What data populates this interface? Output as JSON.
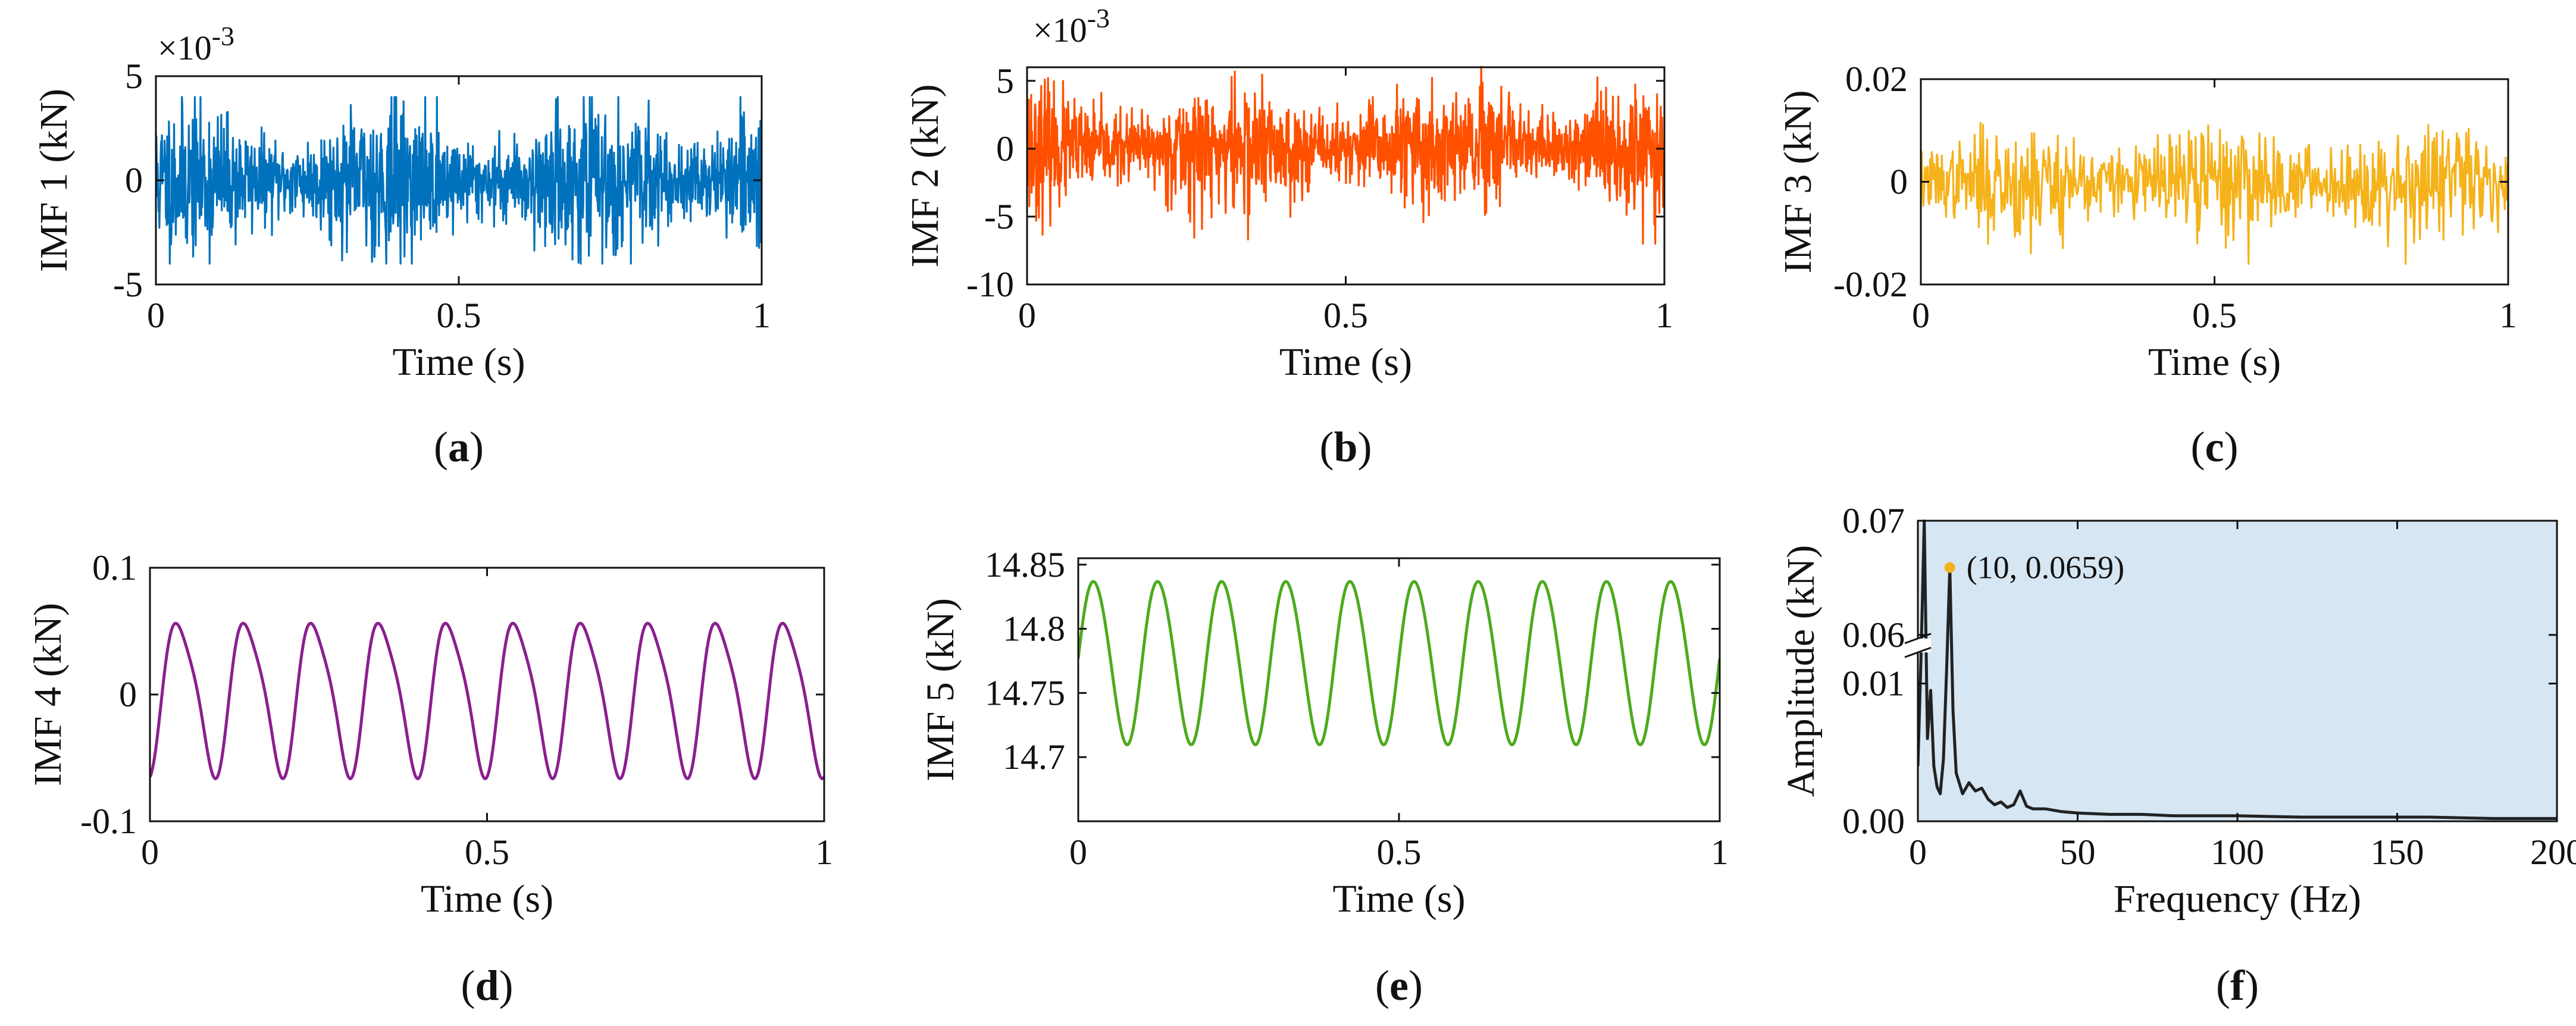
{
  "chart_data": [
    {
      "id": "a",
      "type": "line",
      "ylabel": "IMF 1 (kN)",
      "xlabel": "Time (s)",
      "caption_letter": "a",
      "exponent_label": "×10",
      "exponent_power": "-3",
      "xlim": [
        0,
        1
      ],
      "ylim": [
        -5,
        5
      ],
      "xticks": [
        0,
        0.5,
        1
      ],
      "xtick_labels": [
        "0",
        "0.5",
        "1"
      ],
      "yticks": [
        -5,
        0,
        5
      ],
      "ytick_labels": [
        "-5",
        "0",
        "5"
      ],
      "color": "#0072BD",
      "signal": {
        "kind": "noise",
        "n": 1400,
        "amplitude": 1.6,
        "clip": 4,
        "seed": 11,
        "unit_scale": "x10^-3"
      }
    },
    {
      "id": "b",
      "type": "line",
      "ylabel": "IMF 2 (kN)",
      "xlabel": "Time (s)",
      "caption_letter": "b",
      "exponent_label": "×10",
      "exponent_power": "-3",
      "xlim": [
        0,
        1
      ],
      "ylim": [
        -10,
        6
      ],
      "xticks": [
        0,
        0.5,
        1
      ],
      "xtick_labels": [
        "0",
        "0.5",
        "1"
      ],
      "yticks": [
        -10,
        -5,
        0,
        5
      ],
      "ytick_labels": [
        "-10",
        "-5",
        "0",
        "5"
      ],
      "color": "#FF5000",
      "signal": {
        "kind": "noise",
        "n": 1400,
        "amplitude": 2.2,
        "clip": 7,
        "seed": 23,
        "unit_scale": "x10^-3"
      }
    },
    {
      "id": "c",
      "type": "line",
      "ylabel": "IMF 3 (kN)",
      "xlabel": "Time (s)",
      "caption_letter": "c",
      "xlim": [
        0,
        1
      ],
      "ylim": [
        -0.02,
        0.02
      ],
      "xticks": [
        0,
        0.5,
        1
      ],
      "xtick_labels": [
        "0",
        "0.5",
        "1"
      ],
      "yticks": [
        -0.02,
        0,
        0.02
      ],
      "ytick_labels": [
        "-0.02",
        "0",
        "0.02"
      ],
      "color": "#F5B21A",
      "signal": {
        "kind": "noise",
        "n": 700,
        "amplitude": 0.0055,
        "clip": 0.016,
        "seed": 37
      }
    },
    {
      "id": "d",
      "type": "line",
      "ylabel": "IMF 4 (kN)",
      "xlabel": "Time (s)",
      "caption_letter": "d",
      "xlim": [
        0,
        1
      ],
      "ylim": [
        -0.1,
        0.1
      ],
      "xticks": [
        0,
        0.5,
        1
      ],
      "xtick_labels": [
        "0",
        "0.5",
        "1"
      ],
      "yticks": [
        -0.1,
        0,
        0.1
      ],
      "ytick_labels": [
        "-0.1",
        "0",
        "0.1"
      ],
      "color": "#8B1E8F",
      "signal": {
        "kind": "oscillation",
        "frequency_hz": 10,
        "amplitude": 0.064,
        "offset": 0,
        "harmonic": 0.18,
        "phase": -1.2,
        "n": 600
      }
    },
    {
      "id": "e",
      "type": "line",
      "ylabel": "IMF 5 (kN)",
      "xlabel": "Time (s)",
      "caption_letter": "e",
      "xlim": [
        0,
        1
      ],
      "ylim": [
        14.65,
        14.855
      ],
      "xticks": [
        0,
        0.5,
        1
      ],
      "xtick_labels": [
        "0",
        "0.5",
        "1"
      ],
      "yticks": [
        14.7,
        14.75,
        14.8,
        14.85
      ],
      "ytick_labels": [
        "14.7",
        "14.75",
        "14.8",
        "14.85"
      ],
      "color": "#4DAA1E",
      "signal": {
        "kind": "oscillation",
        "frequency_hz": 10,
        "amplitude": 0.065,
        "offset": 14.775,
        "harmonic": 0.05,
        "phase": 0.0,
        "n": 600
      }
    },
    {
      "id": "f",
      "type": "line",
      "ylabel": "Amplitude (kN)",
      "xlabel": "Frequency (Hz)",
      "caption_letter": "f",
      "xlim": [
        0,
        200
      ],
      "ylim": [
        0,
        0.07
      ],
      "y_axis_break": [
        0.012,
        0.06
      ],
      "xticks": [
        0,
        50,
        100,
        150,
        200
      ],
      "xtick_labels": [
        "0",
        "50",
        "100",
        "150",
        "200"
      ],
      "yticks": [
        0,
        0.01,
        0.06,
        0.07
      ],
      "ytick_labels": [
        "0.00",
        "0.01",
        "0.06",
        "0.07"
      ],
      "color": "#222222",
      "background_color": "#D6E6F3",
      "peak": {
        "x": 10,
        "y": 0.0659,
        "label": "(10, 0.0659)",
        "marker_color": "#F5B21A"
      },
      "spectrum_points": [
        [
          0,
          0.004
        ],
        [
          1,
          0.012
        ],
        [
          2,
          0.07
        ],
        [
          3,
          0.006
        ],
        [
          4,
          0.0095
        ],
        [
          5,
          0.004
        ],
        [
          6,
          0.0025
        ],
        [
          7,
          0.002
        ],
        [
          8,
          0.0045
        ],
        [
          9,
          0.011
        ],
        [
          10,
          0.0659
        ],
        [
          11,
          0.008
        ],
        [
          12,
          0.0035
        ],
        [
          14,
          0.002
        ],
        [
          16,
          0.0028
        ],
        [
          18,
          0.0022
        ],
        [
          20,
          0.0024
        ],
        [
          22,
          0.0016
        ],
        [
          24,
          0.0012
        ],
        [
          26,
          0.0014
        ],
        [
          28,
          0.001
        ],
        [
          30,
          0.0012
        ],
        [
          32,
          0.0022
        ],
        [
          34,
          0.0011
        ],
        [
          36,
          0.0009
        ],
        [
          40,
          0.0009
        ],
        [
          45,
          0.0007
        ],
        [
          50,
          0.0006
        ],
        [
          60,
          0.0005
        ],
        [
          70,
          0.0005
        ],
        [
          80,
          0.0004
        ],
        [
          90,
          0.0004
        ],
        [
          100,
          0.0004
        ],
        [
          120,
          0.0003
        ],
        [
          140,
          0.0003
        ],
        [
          160,
          0.0003
        ],
        [
          180,
          0.0002
        ],
        [
          200,
          0.0002
        ]
      ]
    }
  ]
}
